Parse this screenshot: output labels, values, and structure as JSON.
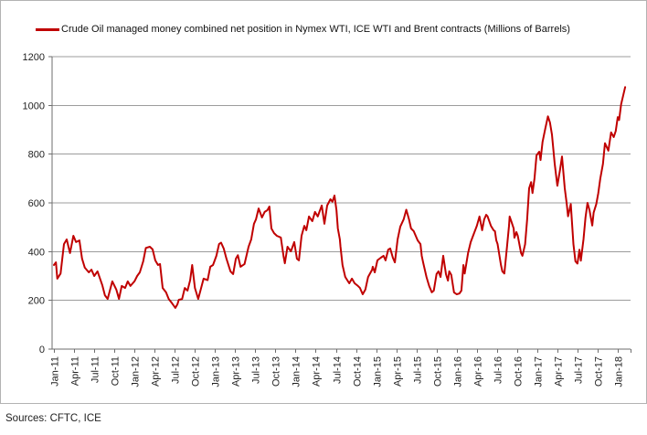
{
  "legend": {
    "series_label": "Crude Oil managed money combined net position in Nymex WTI, ICE WTI and Brent contracts (Millions of Barrels)"
  },
  "footer": {
    "sources": "Sources: CFTC, ICE"
  },
  "colors": {
    "line": "#C00000",
    "gridline": "#9c9c9c",
    "axis": "#6e6e6e",
    "text": "#1f1f1f",
    "frame_border": "#b3b3b3",
    "background": "#ffffff"
  },
  "chart_data": {
    "type": "line",
    "title": "",
    "series_name": "Crude Oil managed money combined net position in Nymex WTI, ICE WTI and Brent contracts (Millions of Barrels)",
    "ylabel": "",
    "xlabel": "",
    "ylim": [
      0,
      1200
    ],
    "y_ticks": [
      0,
      200,
      400,
      600,
      800,
      1000,
      1200
    ],
    "x_labels": [
      "Jan-11",
      "Apr-11",
      "Jul-11",
      "Oct-11",
      "Jan-12",
      "Apr-12",
      "Jul-12",
      "Oct-12",
      "Jan-13",
      "Apr-13",
      "Jul-13",
      "Oct-13",
      "Jan-14",
      "Apr-14",
      "Jul-14",
      "Oct-14",
      "Jan-15",
      "Apr-15",
      "Jul-15",
      "Oct-15",
      "Jan-16",
      "Apr-16",
      "Jul-16",
      "Oct-16",
      "Jan-17",
      "Apr-17",
      "Jul-17",
      "Oct-17",
      "Jan-18"
    ],
    "x_unit": "months_since_jan_2011",
    "months_per_label": 3,
    "grid": true,
    "legend_position": "top",
    "points": [
      [
        0,
        345
      ],
      [
        0.3,
        356
      ],
      [
        0.5,
        289
      ],
      [
        1,
        310
      ],
      [
        1.5,
        431
      ],
      [
        1.9,
        450
      ],
      [
        2.4,
        394
      ],
      [
        2.9,
        465
      ],
      [
        3.3,
        439
      ],
      [
        3.8,
        446
      ],
      [
        4.2,
        371
      ],
      [
        4.6,
        334
      ],
      [
        5.2,
        315
      ],
      [
        5.6,
        326
      ],
      [
        6,
        300
      ],
      [
        6.5,
        319
      ],
      [
        7.2,
        263
      ],
      [
        7.6,
        221
      ],
      [
        8,
        206
      ],
      [
        8.7,
        278
      ],
      [
        9.3,
        244
      ],
      [
        9.7,
        206
      ],
      [
        10.1,
        259
      ],
      [
        10.6,
        251
      ],
      [
        11,
        278
      ],
      [
        11.4,
        259
      ],
      [
        12,
        278
      ],
      [
        12.4,
        300
      ],
      [
        12.8,
        315
      ],
      [
        13.3,
        360
      ],
      [
        13.7,
        415
      ],
      [
        14.3,
        420
      ],
      [
        14.7,
        409
      ],
      [
        15.1,
        364
      ],
      [
        15.5,
        345
      ],
      [
        15.8,
        349
      ],
      [
        16.2,
        251
      ],
      [
        16.7,
        233
      ],
      [
        17.1,
        206
      ],
      [
        17.6,
        188
      ],
      [
        18.1,
        169
      ],
      [
        18.4,
        184
      ],
      [
        18.6,
        202
      ],
      [
        19.1,
        206
      ],
      [
        19.5,
        251
      ],
      [
        19.9,
        240
      ],
      [
        20.3,
        283
      ],
      [
        20.6,
        345
      ],
      [
        21,
        251
      ],
      [
        21.5,
        206
      ],
      [
        21.9,
        248
      ],
      [
        22.3,
        289
      ],
      [
        22.9,
        283
      ],
      [
        23.3,
        338
      ],
      [
        23.7,
        345
      ],
      [
        24.2,
        383
      ],
      [
        24.6,
        431
      ],
      [
        24.9,
        437
      ],
      [
        25.3,
        413
      ],
      [
        25.7,
        371
      ],
      [
        26.3,
        319
      ],
      [
        26.7,
        308
      ],
      [
        27.1,
        371
      ],
      [
        27.4,
        385
      ],
      [
        27.8,
        338
      ],
      [
        28.4,
        349
      ],
      [
        29,
        420
      ],
      [
        29.4,
        450
      ],
      [
        29.8,
        514
      ],
      [
        30.1,
        532
      ],
      [
        30.5,
        577
      ],
      [
        31,
        540
      ],
      [
        31.4,
        563
      ],
      [
        31.8,
        570
      ],
      [
        32.1,
        585
      ],
      [
        32.4,
        495
      ],
      [
        32.8,
        476
      ],
      [
        33.2,
        465
      ],
      [
        33.8,
        458
      ],
      [
        34.2,
        383
      ],
      [
        34.4,
        352
      ],
      [
        34.8,
        420
      ],
      [
        35.3,
        401
      ],
      [
        35.8,
        439
      ],
      [
        36.2,
        371
      ],
      [
        36.5,
        364
      ],
      [
        36.9,
        465
      ],
      [
        37.3,
        506
      ],
      [
        37.6,
        488
      ],
      [
        38,
        544
      ],
      [
        38.5,
        525
      ],
      [
        38.9,
        563
      ],
      [
        39.3,
        544
      ],
      [
        39.9,
        589
      ],
      [
        40.3,
        514
      ],
      [
        40.7,
        589
      ],
      [
        41.2,
        615
      ],
      [
        41.5,
        605
      ],
      [
        41.8,
        630
      ],
      [
        42.1,
        570
      ],
      [
        42.3,
        495
      ],
      [
        42.6,
        450
      ],
      [
        42.7,
        420
      ],
      [
        43,
        345
      ],
      [
        43.4,
        296
      ],
      [
        44,
        270
      ],
      [
        44.4,
        289
      ],
      [
        44.8,
        270
      ],
      [
        45.3,
        259
      ],
      [
        45.6,
        251
      ],
      [
        46,
        225
      ],
      [
        46.4,
        244
      ],
      [
        46.8,
        296
      ],
      [
        47.4,
        326
      ],
      [
        47.5,
        338
      ],
      [
        47.8,
        315
      ],
      [
        48.2,
        364
      ],
      [
        48.7,
        375
      ],
      [
        49.1,
        383
      ],
      [
        49.4,
        364
      ],
      [
        49.8,
        408
      ],
      [
        50.1,
        413
      ],
      [
        50.5,
        375
      ],
      [
        50.8,
        356
      ],
      [
        51.2,
        450
      ],
      [
        51.6,
        502
      ],
      [
        52.1,
        532
      ],
      [
        52.5,
        572
      ],
      [
        52.9,
        532
      ],
      [
        53.2,
        495
      ],
      [
        53.6,
        484
      ],
      [
        54.2,
        446
      ],
      [
        54.6,
        431
      ],
      [
        54.8,
        383
      ],
      [
        55,
        356
      ],
      [
        55.5,
        296
      ],
      [
        55.9,
        259
      ],
      [
        56.3,
        233
      ],
      [
        56.6,
        240
      ],
      [
        57,
        308
      ],
      [
        57.3,
        319
      ],
      [
        57.6,
        296
      ],
      [
        58,
        383
      ],
      [
        58.4,
        308
      ],
      [
        58.7,
        281
      ],
      [
        58.9,
        319
      ],
      [
        59.2,
        305
      ],
      [
        59.6,
        233
      ],
      [
        60,
        225
      ],
      [
        60.4,
        228
      ],
      [
        60.7,
        240
      ],
      [
        61,
        345
      ],
      [
        61.2,
        310
      ],
      [
        61.7,
        394
      ],
      [
        62.1,
        439
      ],
      [
        62.5,
        469
      ],
      [
        63,
        506
      ],
      [
        63.4,
        544
      ],
      [
        63.8,
        488
      ],
      [
        64.1,
        532
      ],
      [
        64.4,
        551
      ],
      [
        64.6,
        545
      ],
      [
        65.1,
        506
      ],
      [
        65.5,
        488
      ],
      [
        65.7,
        484
      ],
      [
        65.9,
        446
      ],
      [
        66.1,
        431
      ],
      [
        66.6,
        345
      ],
      [
        66.8,
        319
      ],
      [
        67.1,
        310
      ],
      [
        67.5,
        420
      ],
      [
        67.8,
        506
      ],
      [
        67.9,
        544
      ],
      [
        68.2,
        520
      ],
      [
        68.5,
        495
      ],
      [
        68.6,
        457
      ],
      [
        68.9,
        480
      ],
      [
        69.1,
        465
      ],
      [
        69.6,
        394
      ],
      [
        69.8,
        383
      ],
      [
        70.2,
        430
      ],
      [
        70.5,
        530
      ],
      [
        70.8,
        660
      ],
      [
        71.1,
        685
      ],
      [
        71.3,
        640
      ],
      [
        71.6,
        700
      ],
      [
        71.9,
        795
      ],
      [
        72.3,
        810
      ],
      [
        72.5,
        776
      ],
      [
        72.8,
        850
      ],
      [
        73.2,
        905
      ],
      [
        73.6,
        955
      ],
      [
        73.9,
        930
      ],
      [
        74.2,
        880
      ],
      [
        74.6,
        760
      ],
      [
        75,
        670
      ],
      [
        75.4,
        735
      ],
      [
        75.7,
        790
      ],
      [
        76.1,
        660
      ],
      [
        76.4,
        595
      ],
      [
        76.6,
        545
      ],
      [
        77,
        595
      ],
      [
        77.4,
        430
      ],
      [
        77.7,
        360
      ],
      [
        78,
        351
      ],
      [
        78.3,
        408
      ],
      [
        78.5,
        363
      ],
      [
        78.9,
        450
      ],
      [
        79.2,
        540
      ],
      [
        79.5,
        600
      ],
      [
        79.8,
        570
      ],
      [
        80.2,
        507
      ],
      [
        80.4,
        560
      ],
      [
        80.8,
        595
      ],
      [
        81.1,
        640
      ],
      [
        81.4,
        700
      ],
      [
        81.8,
        760
      ],
      [
        82.1,
        845
      ],
      [
        82.6,
        814
      ],
      [
        83,
        889
      ],
      [
        83.4,
        870
      ],
      [
        83.7,
        895
      ],
      [
        84,
        952
      ],
      [
        84.2,
        940
      ],
      [
        84.5,
        1005
      ],
      [
        84.8,
        1040
      ],
      [
        85.1,
        1075
      ]
    ]
  }
}
